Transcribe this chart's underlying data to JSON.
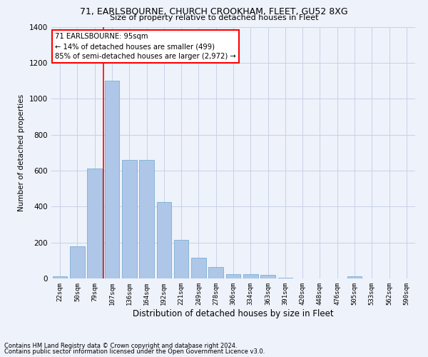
{
  "title1": "71, EARLSBOURNE, CHURCH CROOKHAM, FLEET, GU52 8XG",
  "title2": "Size of property relative to detached houses in Fleet",
  "xlabel": "Distribution of detached houses by size in Fleet",
  "ylabel": "Number of detached properties",
  "categories": [
    "22sqm",
    "50sqm",
    "79sqm",
    "107sqm",
    "136sqm",
    "164sqm",
    "192sqm",
    "221sqm",
    "249sqm",
    "278sqm",
    "306sqm",
    "334sqm",
    "363sqm",
    "391sqm",
    "420sqm",
    "448sqm",
    "476sqm",
    "505sqm",
    "533sqm",
    "562sqm",
    "590sqm"
  ],
  "values": [
    10,
    180,
    610,
    1100,
    660,
    660,
    425,
    215,
    115,
    65,
    25,
    25,
    20,
    5,
    0,
    0,
    0,
    10,
    0,
    0,
    0
  ],
  "bar_color": "#aec6e8",
  "bar_edge_color": "#7bafd4",
  "vline_pos": 2.5,
  "vline_color": "red",
  "annotation_text": "71 EARLSBOURNE: 95sqm\n← 14% of detached houses are smaller (499)\n85% of semi-detached houses are larger (2,972) →",
  "annotation_box_color": "white",
  "annotation_box_edge_color": "red",
  "ylim": [
    0,
    1400
  ],
  "yticks": [
    0,
    200,
    400,
    600,
    800,
    1000,
    1200,
    1400
  ],
  "footer1": "Contains HM Land Registry data © Crown copyright and database right 2024.",
  "footer2": "Contains public sector information licensed under the Open Government Licence v3.0.",
  "bg_color": "#eef2fa",
  "grid_color": "#c8d0e8"
}
